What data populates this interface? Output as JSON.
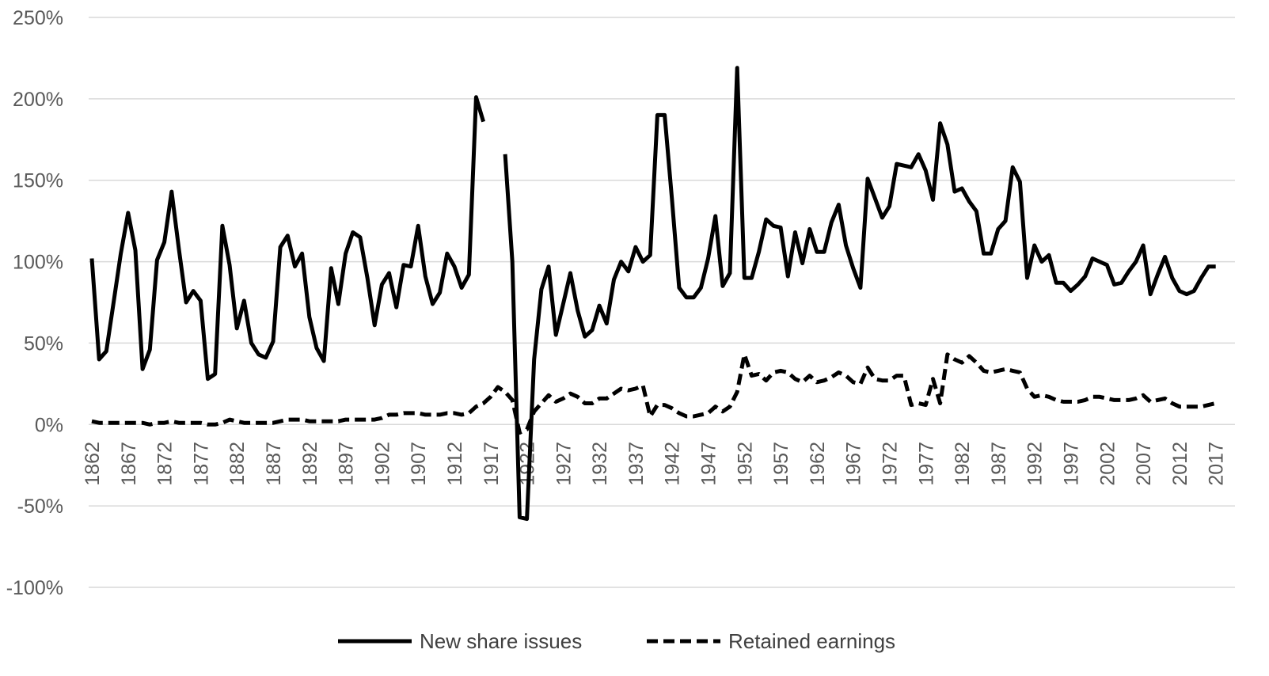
{
  "chart_data": {
    "type": "line",
    "title": "",
    "xlabel": "",
    "ylabel": "",
    "ylim": [
      -100,
      250
    ],
    "yticks": [
      250,
      200,
      150,
      100,
      50,
      0,
      -50,
      -100
    ],
    "ytick_labels": [
      "250%",
      "200%",
      "150%",
      "100%",
      "50%",
      "0%",
      "-50%",
      "-100%"
    ],
    "xlim": [
      1862,
      2019
    ],
    "xticks": [
      1862,
      1867,
      1872,
      1877,
      1882,
      1887,
      1892,
      1897,
      1902,
      1907,
      1912,
      1917,
      1922,
      1927,
      1932,
      1937,
      1942,
      1947,
      1952,
      1957,
      1962,
      1967,
      1972,
      1977,
      1982,
      1987,
      1992,
      1997,
      2002,
      2007,
      2012,
      2017
    ],
    "grid": true,
    "legend_position": "bottom",
    "series": [
      {
        "name": "New share issues",
        "style": "solid",
        "color": "#000000",
        "points": [
          [
            1862,
            102
          ],
          [
            1863,
            40
          ],
          [
            1864,
            45
          ],
          [
            1865,
            75
          ],
          [
            1866,
            105
          ],
          [
            1867,
            130
          ],
          [
            1868,
            107
          ],
          [
            1869,
            34
          ],
          [
            1870,
            46
          ],
          [
            1871,
            101
          ],
          [
            1872,
            112
          ],
          [
            1873,
            143
          ],
          [
            1874,
            108
          ],
          [
            1875,
            75
          ],
          [
            1876,
            82
          ],
          [
            1877,
            76
          ],
          [
            1878,
            28
          ],
          [
            1879,
            31
          ],
          [
            1880,
            122
          ],
          [
            1881,
            98
          ],
          [
            1882,
            59
          ],
          [
            1883,
            76
          ],
          [
            1884,
            50
          ],
          [
            1885,
            43
          ],
          [
            1886,
            41
          ],
          [
            1887,
            51
          ],
          [
            1888,
            109
          ],
          [
            1889,
            116
          ],
          [
            1890,
            97
          ],
          [
            1891,
            105
          ],
          [
            1892,
            66
          ],
          [
            1893,
            47
          ],
          [
            1894,
            39
          ],
          [
            1895,
            96
          ],
          [
            1896,
            74
          ],
          [
            1897,
            105
          ],
          [
            1898,
            118
          ],
          [
            1899,
            115
          ],
          [
            1900,
            90
          ],
          [
            1901,
            61
          ],
          [
            1902,
            86
          ],
          [
            1903,
            93
          ],
          [
            1904,
            72
          ],
          [
            1905,
            98
          ],
          [
            1906,
            97
          ],
          [
            1907,
            122
          ],
          [
            1908,
            91
          ],
          [
            1909,
            74
          ],
          [
            1910,
            81
          ],
          [
            1911,
            105
          ],
          [
            1912,
            97
          ],
          [
            1913,
            84
          ],
          [
            1914,
            92
          ],
          [
            1915,
            201
          ],
          [
            1916,
            186
          ],
          null,
          [
            1919,
            166
          ],
          [
            1920,
            100
          ],
          [
            1921,
            -57
          ],
          [
            1922,
            -58
          ],
          [
            1923,
            40
          ],
          [
            1924,
            83
          ],
          [
            1925,
            97
          ],
          [
            1926,
            55
          ],
          [
            1927,
            74
          ],
          [
            1928,
            93
          ],
          [
            1929,
            70
          ],
          [
            1930,
            54
          ],
          [
            1931,
            58
          ],
          [
            1932,
            73
          ],
          [
            1933,
            62
          ],
          [
            1934,
            89
          ],
          [
            1935,
            100
          ],
          [
            1936,
            94
          ],
          [
            1937,
            109
          ],
          [
            1938,
            100
          ],
          [
            1939,
            104
          ],
          [
            1940,
            190
          ],
          [
            1941,
            190
          ],
          [
            1942,
            139
          ],
          [
            1943,
            84
          ],
          [
            1944,
            78
          ],
          [
            1945,
            78
          ],
          [
            1946,
            84
          ],
          [
            1947,
            102
          ],
          [
            1948,
            128
          ],
          [
            1949,
            85
          ],
          [
            1950,
            93
          ],
          [
            1951,
            219
          ],
          [
            1952,
            90
          ],
          [
            1953,
            90
          ],
          [
            1954,
            106
          ],
          [
            1955,
            126
          ],
          [
            1956,
            122
          ],
          [
            1957,
            121
          ],
          [
            1958,
            91
          ],
          [
            1959,
            118
          ],
          [
            1960,
            99
          ],
          [
            1961,
            120
          ],
          [
            1962,
            106
          ],
          [
            1963,
            106
          ],
          [
            1964,
            124
          ],
          [
            1965,
            135
          ],
          [
            1966,
            110
          ],
          [
            1967,
            96
          ],
          [
            1968,
            84
          ],
          [
            1969,
            151
          ],
          [
            1970,
            139
          ],
          [
            1971,
            127
          ],
          [
            1972,
            134
          ],
          [
            1973,
            160
          ],
          [
            1974,
            159
          ],
          [
            1975,
            158
          ],
          [
            1976,
            166
          ],
          [
            1977,
            156
          ],
          [
            1978,
            138
          ],
          [
            1979,
            185
          ],
          [
            1980,
            172
          ],
          [
            1981,
            143
          ],
          [
            1982,
            145
          ],
          [
            1983,
            137
          ],
          [
            1984,
            131
          ],
          [
            1985,
            105
          ],
          [
            1986,
            105
          ],
          [
            1987,
            120
          ],
          [
            1988,
            125
          ],
          [
            1989,
            158
          ],
          [
            1990,
            149
          ],
          [
            1991,
            90
          ],
          [
            1992,
            110
          ],
          [
            1993,
            100
          ],
          [
            1994,
            104
          ],
          [
            1995,
            87
          ],
          [
            1996,
            87
          ],
          [
            1997,
            82
          ],
          [
            1998,
            86
          ],
          [
            1999,
            91
          ],
          [
            2000,
            102
          ],
          [
            2001,
            100
          ],
          [
            2002,
            98
          ],
          [
            2003,
            86
          ],
          [
            2004,
            87
          ],
          [
            2005,
            94
          ],
          [
            2006,
            100
          ],
          [
            2007,
            110
          ],
          [
            2008,
            80
          ],
          [
            2009,
            92
          ],
          [
            2010,
            103
          ],
          [
            2011,
            90
          ],
          [
            2012,
            82
          ],
          [
            2013,
            80
          ],
          [
            2014,
            82
          ],
          [
            2015,
            90
          ],
          [
            2016,
            97
          ],
          [
            2017,
            97
          ]
        ]
      },
      {
        "name": "Retained earnings",
        "style": "dashed",
        "color": "#000000",
        "points": [
          [
            1862,
            2
          ],
          [
            1863,
            1
          ],
          [
            1864,
            1
          ],
          [
            1865,
            1
          ],
          [
            1866,
            1
          ],
          [
            1867,
            1
          ],
          [
            1868,
            1
          ],
          [
            1869,
            1
          ],
          [
            1870,
            0
          ],
          [
            1871,
            1
          ],
          [
            1872,
            1
          ],
          [
            1873,
            2
          ],
          [
            1874,
            1
          ],
          [
            1875,
            1
          ],
          [
            1876,
            1
          ],
          [
            1877,
            1
          ],
          [
            1878,
            0
          ],
          [
            1879,
            0
          ],
          [
            1880,
            1
          ],
          [
            1881,
            3
          ],
          [
            1882,
            2
          ],
          [
            1883,
            1
          ],
          [
            1884,
            1
          ],
          [
            1885,
            1
          ],
          [
            1886,
            1
          ],
          [
            1887,
            1
          ],
          [
            1888,
            2
          ],
          [
            1889,
            3
          ],
          [
            1890,
            3
          ],
          [
            1891,
            3
          ],
          [
            1892,
            2
          ],
          [
            1893,
            2
          ],
          [
            1894,
            2
          ],
          [
            1895,
            2
          ],
          [
            1896,
            2
          ],
          [
            1897,
            3
          ],
          [
            1898,
            3
          ],
          [
            1899,
            3
          ],
          [
            1900,
            3
          ],
          [
            1901,
            3
          ],
          [
            1902,
            4
          ],
          [
            1903,
            6
          ],
          [
            1904,
            6
          ],
          [
            1905,
            7
          ],
          [
            1906,
            7
          ],
          [
            1907,
            7
          ],
          [
            1908,
            6
          ],
          [
            1909,
            6
          ],
          [
            1910,
            6
          ],
          [
            1911,
            7
          ],
          [
            1912,
            7
          ],
          [
            1913,
            6
          ],
          [
            1914,
            7
          ],
          [
            1915,
            11
          ],
          [
            1916,
            13
          ],
          [
            1917,
            17
          ],
          [
            1918,
            23
          ],
          [
            1919,
            20
          ],
          [
            1920,
            15
          ],
          [
            1921,
            -5
          ],
          [
            1922,
            -3
          ],
          [
            1923,
            8
          ],
          [
            1924,
            13
          ],
          [
            1925,
            18
          ],
          [
            1926,
            14
          ],
          [
            1927,
            16
          ],
          [
            1928,
            19
          ],
          [
            1929,
            17
          ],
          [
            1930,
            13
          ],
          [
            1931,
            13
          ],
          [
            1932,
            16
          ],
          [
            1933,
            16
          ],
          [
            1934,
            19
          ],
          [
            1935,
            22
          ],
          [
            1936,
            21
          ],
          [
            1937,
            22
          ],
          [
            1938,
            24
          ],
          [
            1939,
            5
          ],
          [
            1940,
            12
          ],
          [
            1941,
            12
          ],
          [
            1942,
            10
          ],
          [
            1943,
            7
          ],
          [
            1944,
            5
          ],
          [
            1945,
            5
          ],
          [
            1946,
            6
          ],
          [
            1947,
            7
          ],
          [
            1948,
            11
          ],
          [
            1949,
            8
          ],
          [
            1950,
            11
          ],
          [
            1951,
            20
          ],
          [
            1952,
            43
          ],
          [
            1953,
            30
          ],
          [
            1954,
            31
          ],
          [
            1955,
            27
          ],
          [
            1956,
            32
          ],
          [
            1957,
            33
          ],
          [
            1958,
            32
          ],
          [
            1959,
            28
          ],
          [
            1960,
            26
          ],
          [
            1961,
            30
          ],
          [
            1962,
            26
          ],
          [
            1963,
            27
          ],
          [
            1964,
            29
          ],
          [
            1965,
            32
          ],
          [
            1966,
            30
          ],
          [
            1967,
            26
          ],
          [
            1968,
            25
          ],
          [
            1969,
            35
          ],
          [
            1970,
            28
          ],
          [
            1971,
            27
          ],
          [
            1972,
            27
          ],
          [
            1973,
            30
          ],
          [
            1974,
            30
          ],
          [
            1975,
            12
          ],
          [
            1976,
            13
          ],
          [
            1977,
            12
          ],
          [
            1978,
            28
          ],
          [
            1979,
            13
          ],
          [
            1980,
            43
          ],
          [
            1981,
            40
          ],
          [
            1982,
            38
          ],
          [
            1983,
            42
          ],
          [
            1984,
            38
          ],
          [
            1985,
            33
          ],
          [
            1986,
            32
          ],
          [
            1987,
            33
          ],
          [
            1988,
            34
          ],
          [
            1989,
            33
          ],
          [
            1990,
            32
          ],
          [
            1991,
            22
          ],
          [
            1992,
            17
          ],
          [
            1993,
            18
          ],
          [
            1994,
            17
          ],
          [
            1995,
            15
          ],
          [
            1996,
            14
          ],
          [
            1997,
            14
          ],
          [
            1998,
            14
          ],
          [
            1999,
            15
          ],
          [
            2000,
            17
          ],
          [
            2001,
            17
          ],
          [
            2002,
            16
          ],
          [
            2003,
            15
          ],
          [
            2004,
            15
          ],
          [
            2005,
            15
          ],
          [
            2006,
            16
          ],
          [
            2007,
            18
          ],
          [
            2008,
            14
          ],
          [
            2009,
            15
          ],
          [
            2010,
            16
          ],
          [
            2011,
            13
          ],
          [
            2012,
            11
          ],
          [
            2013,
            11
          ],
          [
            2014,
            11
          ],
          [
            2015,
            11
          ],
          [
            2016,
            12
          ],
          [
            2017,
            13
          ]
        ]
      }
    ]
  }
}
